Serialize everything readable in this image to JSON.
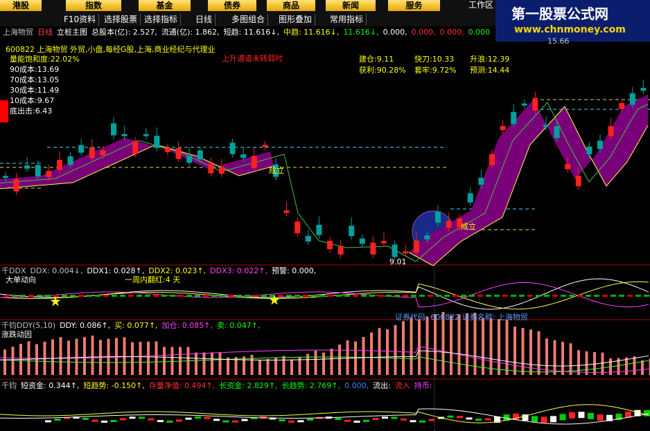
{
  "menu": [
    "港股",
    "指数",
    "基金",
    "债券",
    "商品",
    "新闻",
    "服务"
  ],
  "workspace": "工作区",
  "logo": {
    "title": "第一股票公式网",
    "url": "www.chnmoney.com"
  },
  "toolbar": [
    "F10资料",
    "选择股票",
    "选择指标",
    "日线",
    "多图组合",
    "图形叠加",
    "常用指标"
  ],
  "info_bar": [
    {
      "text": "上海物贸",
      "color": "#c0c0c0"
    },
    {
      "text": "日线",
      "color": "#ff4040"
    },
    {
      "text": "立桩主图",
      "color": "#ffffff"
    },
    {
      "text": "总股本(亿): 2.527,",
      "color": "#ffffff"
    },
    {
      "text": "流通(亿): 1.862,",
      "color": "#ffffff"
    },
    {
      "text": "短趋: 11.616↓,",
      "color": "#ffffff"
    },
    {
      "text": "中趋: 11.616↓,",
      "color": "#ffff00"
    },
    {
      "text": "11.616↓,",
      "color": "#00ff00"
    },
    {
      "text": "0.000,",
      "color": "#ffffff"
    },
    {
      "text": "0.000,",
      "color": "#ff3030"
    },
    {
      "text": "0.000,",
      "color": "#ff3030"
    },
    {
      "text": "0.000",
      "color": "#00ff00"
    }
  ],
  "main": {
    "stock_line": "600822 上海物贸 外贸,小盘,每经G股,上海,商业经纪与代理业",
    "signal": "上升通道未转弱时",
    "costs": [
      "量能饱和度:22.02%",
      "90成本:13.69",
      "70成本:13.05",
      "30成本:11.49",
      "10成本:9.67",
      "底出击:6.43"
    ],
    "stats": [
      "建仓:9.11",
      "快刀:10.33",
      "升浪:12.39",
      "获利:90.28%",
      "套牢:9.72%",
      "预测:14.44"
    ],
    "marks": [
      "成立",
      "成立"
    ],
    "high_label": "15.66",
    "low_label": "9.01"
  },
  "ddx": {
    "legend": [
      {
        "text": "千DDX",
        "color": "#c0c0c0"
      },
      {
        "text": "DDX: 0.004↓,",
        "color": "#c0c0c0"
      },
      {
        "text": "DDX1: 0.028↑,",
        "color": "#ffffff"
      },
      {
        "text": "DDX2: 0.023↑,",
        "color": "#ffff00"
      },
      {
        "text": "DDX3: 0.022↑,",
        "color": "#ff40ff"
      },
      {
        "text": "预警: 0.000,",
        "color": "#ffffff"
      }
    ],
    "title": "大单动向",
    "note": "一周内翻红:4 天",
    "security": "证券代码: 600822 证券名称: 上海物贸"
  },
  "ddy": {
    "legend": [
      {
        "text": "千钧DDY(5,10)",
        "color": "#c0c0c0"
      },
      {
        "text": "DDY: 0.086↑,",
        "color": "#ffffff"
      },
      {
        "text": "买: 0.077↑,",
        "color": "#ffff00"
      },
      {
        "text": "加仓: 0.085↑,",
        "color": "#ff40ff"
      },
      {
        "text": "卖: 0.047↑,",
        "color": "#00ff00"
      }
    ],
    "title": "涨跌动因"
  },
  "fund": {
    "legend": [
      {
        "text": "千钧",
        "color": "#c0c0c0"
      },
      {
        "text": "短资金: 0.344↑,",
        "color": "#ffffff"
      },
      {
        "text": "短趋势: -0.150↑,",
        "color": "#ffff00"
      },
      {
        "text": "存量净值: 0.494↑,",
        "color": "#ff3030"
      },
      {
        "text": "长资金: 2.829↑,",
        "color": "#00ff00"
      },
      {
        "text": "长趋势: 2.769↑,",
        "color": "#00ff00"
      },
      {
        "text": "0.000,",
        "color": "#4080ff"
      },
      {
        "text": "流出:",
        "color": "#ffffff"
      },
      {
        "text": "流入",
        "color": "#ff3030"
      },
      {
        "text": "持币:",
        "color": "#ff40ff"
      }
    ]
  }
}
